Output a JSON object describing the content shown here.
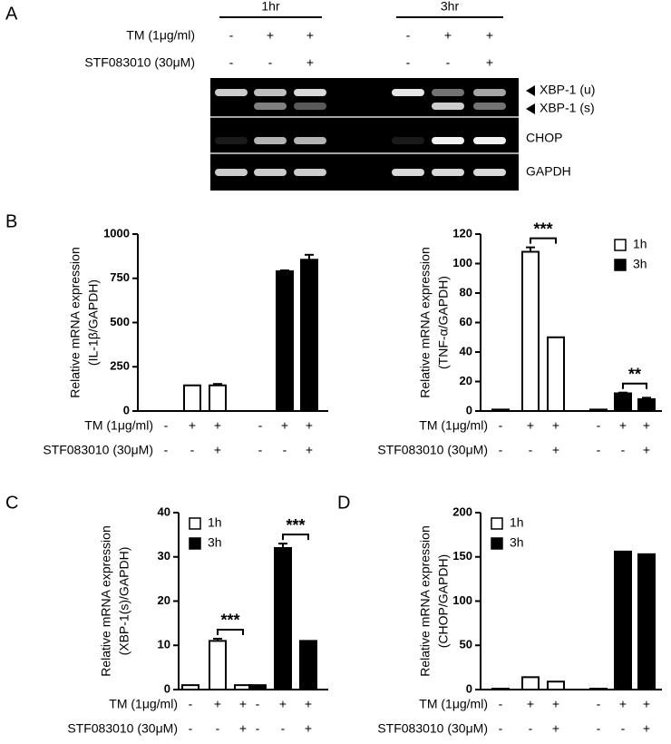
{
  "panel_a": {
    "letter": "A",
    "groups": [
      "1hr",
      "3hr"
    ],
    "rows": [
      {
        "label": "TM (1μg/ml)",
        "signs": [
          "-",
          "+",
          "+",
          "-",
          "+",
          "+"
        ]
      },
      {
        "label": "STF083010 (30μM)",
        "signs": [
          "-",
          "-",
          "+",
          "-",
          "-",
          "+"
        ]
      }
    ],
    "bands": [
      "XBP-1 (u)",
      "XBP-1 (s)",
      "CHOP",
      "GAPDH"
    ]
  },
  "chart_data": [
    {
      "type": "bar",
      "letter": "B",
      "ylabel": [
        "Relative mRNA expression",
        "(IL-1β/GAPDH)"
      ],
      "ylim": [
        0,
        1000
      ],
      "yticks": [
        0,
        250,
        500,
        750,
        1000
      ],
      "rows": [
        {
          "label": "TM (1μg/ml)",
          "signs": [
            "-",
            "+",
            "+",
            "-",
            "+",
            "+"
          ]
        },
        {
          "label": "STF083010 (30μM)",
          "signs": [
            "-",
            "-",
            "+",
            "-",
            "-",
            "+"
          ]
        }
      ],
      "series": [
        {
          "color": "#ffffff",
          "values": [
            0,
            145,
            145
          ],
          "errors": [
            null,
            null,
            8
          ]
        },
        {
          "color": "#000000",
          "values": [
            0,
            790,
            855
          ],
          "errors": [
            null,
            5,
            28
          ]
        }
      ]
    },
    {
      "type": "bar",
      "ylabel": [
        "Relative mRNA expression",
        "(TNF-α/GAPDH)"
      ],
      "ylim": [
        0,
        120
      ],
      "yticks": [
        0,
        20,
        40,
        60,
        80,
        100,
        120
      ],
      "legend": "top-right",
      "rows": [
        {
          "label": "TM (1μg/ml)",
          "signs": [
            "-",
            "+",
            "+",
            "-",
            "+",
            "+"
          ]
        },
        {
          "label": "STF083010 (30μM)",
          "signs": [
            "-",
            "-",
            "+",
            "-",
            "-",
            "+"
          ]
        }
      ],
      "series": [
        {
          "name": "1h",
          "color": "#ffffff",
          "values": [
            1,
            108,
            50
          ],
          "errors": [
            null,
            3,
            null
          ]
        },
        {
          "name": "3h",
          "color": "#000000",
          "values": [
            1,
            12,
            8
          ],
          "errors": [
            null,
            0.5,
            1
          ]
        }
      ],
      "annotations": [
        {
          "text": "***",
          "series": 0,
          "bars": [
            1,
            2
          ]
        },
        {
          "text": "**",
          "series": 1,
          "bars": [
            1,
            2
          ]
        }
      ]
    },
    {
      "type": "bar",
      "letter": "C",
      "ylabel": [
        "Relative mRNA expression",
        "(XBP-1(s)/GAPDH)"
      ],
      "ylim": [
        0,
        40
      ],
      "yticks": [
        0,
        10,
        20,
        30,
        40
      ],
      "legend": "top-left",
      "rows": [
        {
          "label": "TM (1μg/ml)",
          "signs": [
            "-",
            "+",
            "+",
            "-",
            "+",
            "+"
          ]
        },
        {
          "label": "STF083010 (30μM)",
          "signs": [
            "-",
            "-",
            "+",
            "-",
            "-",
            "+"
          ]
        }
      ],
      "series": [
        {
          "name": "1h",
          "color": "#ffffff",
          "values": [
            1,
            11,
            1
          ],
          "errors": [
            null,
            0.5,
            null
          ]
        },
        {
          "name": "3h",
          "color": "#000000",
          "values": [
            1,
            32,
            11
          ],
          "errors": [
            null,
            1,
            null
          ]
        }
      ],
      "annotations": [
        {
          "text": "***",
          "series": 0,
          "bars": [
            1,
            2
          ]
        },
        {
          "text": "***",
          "series": 1,
          "bars": [
            1,
            2
          ]
        }
      ]
    },
    {
      "type": "bar",
      "letter": "D",
      "ylabel": [
        "Relative mRNA expression",
        "(CHOP/GAPDH)"
      ],
      "ylim": [
        0,
        200
      ],
      "yticks": [
        0,
        50,
        100,
        150,
        200
      ],
      "legend": "top-left",
      "rows": [
        {
          "label": "TM (1μg/ml)",
          "signs": [
            "-",
            "+",
            "+",
            "-",
            "+",
            "+"
          ]
        },
        {
          "label": "STF083010 (30μM)",
          "signs": [
            "-",
            "-",
            "+",
            "-",
            "-",
            "+"
          ]
        }
      ],
      "series": [
        {
          "name": "1h",
          "color": "#ffffff",
          "values": [
            1,
            14,
            9
          ],
          "errors": [
            null,
            null,
            null
          ]
        },
        {
          "name": "3h",
          "color": "#000000",
          "values": [
            1,
            156,
            153
          ],
          "errors": [
            null,
            null,
            null
          ]
        }
      ]
    }
  ]
}
